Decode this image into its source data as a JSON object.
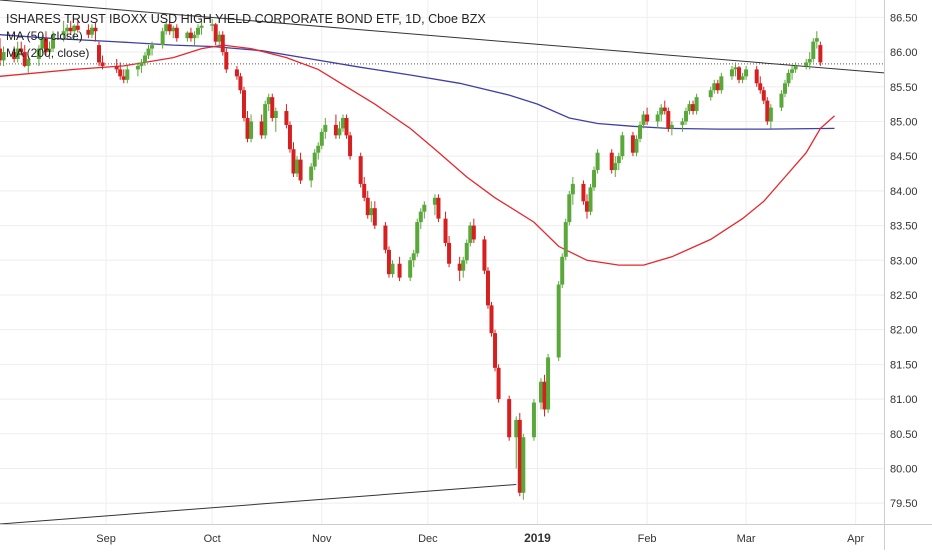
{
  "header": {
    "title": "ISHARES TRUST IBOXX USD HIGH YIELD CORPORATE BOND ETF, 1D, Cboe BZX",
    "ma50_label": "MA (50, close)",
    "ma200_label": "MA (200, close)"
  },
  "colors": {
    "up": "#5aa73a",
    "down": "#d61f1f",
    "ma50": "#e8262b",
    "ma200": "#3f3fa8",
    "trendline": "#333333",
    "grid": "#eeeeee",
    "axis_text": "#333333"
  },
  "chart_data": {
    "type": "candlestick",
    "title": "ISHARES TRUST IBOXX USD HIGH YIELD CORPORATE BOND ETF, 1D, Cboe BZX",
    "xlabel": "",
    "ylabel": "",
    "ylim": [
      79.2,
      86.75
    ],
    "y_ticks": [
      79.5,
      80.0,
      80.5,
      81.0,
      81.5,
      82.0,
      82.5,
      83.0,
      83.5,
      84.0,
      84.5,
      85.0,
      85.5,
      86.0,
      86.5
    ],
    "x_range": [
      "2018-08-02",
      "2019-04-09"
    ],
    "x_ticks": [
      {
        "date": "2018-09-01",
        "label": "Sep"
      },
      {
        "date": "2018-10-01",
        "label": "Oct"
      },
      {
        "date": "2018-11-01",
        "label": "Nov"
      },
      {
        "date": "2018-12-01",
        "label": "Dec"
      },
      {
        "date": "2019-01-01",
        "label": "2019"
      },
      {
        "date": "2019-02-01",
        "label": "Feb"
      },
      {
        "date": "2019-03-01",
        "label": "Mar"
      },
      {
        "date": "2019-04-01",
        "label": "Apr"
      }
    ],
    "grid": true,
    "ohlc": [
      [
        "2018-08-02",
        86.05,
        86.2,
        85.8,
        85.88
      ],
      [
        "2018-08-03",
        85.88,
        86.08,
        85.8,
        86.0
      ],
      [
        "2018-08-06",
        86.0,
        86.08,
        85.85,
        85.9
      ],
      [
        "2018-08-07",
        85.9,
        86.15,
        85.85,
        86.05
      ],
      [
        "2018-08-08",
        86.05,
        86.15,
        85.95,
        86.0
      ],
      [
        "2018-08-09",
        86.0,
        86.1,
        85.78,
        85.8
      ],
      [
        "2018-08-10",
        85.8,
        85.95,
        85.7,
        85.9
      ],
      [
        "2018-08-13",
        85.9,
        86.1,
        85.8,
        86.05
      ],
      [
        "2018-08-14",
        86.05,
        86.25,
        85.98,
        86.2
      ],
      [
        "2018-08-15",
        86.2,
        86.3,
        85.95,
        86.0
      ],
      [
        "2018-08-16",
        86.0,
        86.15,
        85.9,
        86.05
      ],
      [
        "2018-08-17",
        86.05,
        86.3,
        86.0,
        86.25
      ],
      [
        "2018-08-20",
        86.25,
        86.45,
        86.15,
        86.3
      ],
      [
        "2018-08-21",
        86.3,
        86.4,
        86.2,
        86.35
      ],
      [
        "2018-08-22",
        86.35,
        86.45,
        86.25,
        86.3
      ],
      [
        "2018-08-23",
        86.3,
        86.4,
        86.2,
        86.38
      ],
      [
        "2018-08-24",
        86.38,
        86.45,
        86.28,
        86.32
      ],
      [
        "2018-08-27",
        86.32,
        86.4,
        86.2,
        86.25
      ],
      [
        "2018-08-28",
        86.25,
        86.4,
        86.2,
        86.35
      ],
      [
        "2018-08-29",
        86.35,
        86.42,
        86.15,
        86.3
      ],
      [
        "2018-08-30",
        86.1,
        86.15,
        85.8,
        85.85
      ],
      [
        "2018-08-31",
        85.85,
        85.95,
        85.75,
        85.8
      ],
      [
        "2018-09-04",
        85.8,
        85.9,
        85.7,
        85.75
      ],
      [
        "2018-09-05",
        85.75,
        85.85,
        85.6,
        85.65
      ],
      [
        "2018-09-06",
        85.65,
        85.75,
        85.55,
        85.6
      ],
      [
        "2018-09-07",
        85.6,
        85.8,
        85.55,
        85.75
      ],
      [
        "2018-09-10",
        85.75,
        85.85,
        85.65,
        85.8
      ],
      [
        "2018-09-11",
        85.8,
        85.9,
        85.7,
        85.85
      ],
      [
        "2018-09-12",
        85.85,
        86.0,
        85.8,
        85.95
      ],
      [
        "2018-09-13",
        85.95,
        86.1,
        85.9,
        86.05
      ],
      [
        "2018-09-14",
        86.05,
        86.15,
        85.95,
        86.1
      ],
      [
        "2018-09-17",
        86.1,
        86.35,
        86.05,
        86.3
      ],
      [
        "2018-09-18",
        86.3,
        86.45,
        86.25,
        86.4
      ],
      [
        "2018-09-19",
        86.4,
        86.45,
        86.25,
        86.3
      ],
      [
        "2018-09-20",
        86.3,
        86.38,
        86.2,
        86.35
      ],
      [
        "2018-09-21",
        86.35,
        86.4,
        86.15,
        86.2
      ],
      [
        "2018-09-24",
        86.2,
        86.3,
        86.15,
        86.28
      ],
      [
        "2018-09-25",
        86.28,
        86.35,
        86.15,
        86.2
      ],
      [
        "2018-09-26",
        86.2,
        86.3,
        86.1,
        86.25
      ],
      [
        "2018-09-27",
        86.25,
        86.4,
        86.2,
        86.35
      ],
      [
        "2018-09-28",
        86.35,
        86.45,
        86.25,
        86.38
      ],
      [
        "2018-10-01",
        86.38,
        86.48,
        86.3,
        86.4
      ],
      [
        "2018-10-02",
        86.4,
        86.42,
        86.1,
        86.15
      ],
      [
        "2018-10-03",
        86.15,
        86.3,
        86.1,
        86.25
      ],
      [
        "2018-10-04",
        86.25,
        86.3,
        85.95,
        86.0
      ],
      [
        "2018-10-05",
        86.0,
        86.05,
        85.7,
        85.75
      ],
      [
        "2018-10-08",
        85.75,
        85.8,
        85.6,
        85.65
      ],
      [
        "2018-10-09",
        85.65,
        85.7,
        85.4,
        85.45
      ],
      [
        "2018-10-10",
        85.45,
        85.5,
        85.0,
        85.05
      ],
      [
        "2018-10-11",
        85.05,
        85.15,
        84.7,
        84.75
      ],
      [
        "2018-10-12",
        84.75,
        85.1,
        84.7,
        85.0
      ],
      [
        "2018-10-15",
        85.0,
        85.1,
        84.75,
        84.8
      ],
      [
        "2018-10-16",
        84.8,
        85.3,
        84.75,
        85.25
      ],
      [
        "2018-10-17",
        85.25,
        85.4,
        85.15,
        85.35
      ],
      [
        "2018-10-18",
        85.35,
        85.4,
        85.0,
        85.05
      ],
      [
        "2018-10-19",
        85.05,
        85.2,
        84.85,
        85.15
      ],
      [
        "2018-10-22",
        85.15,
        85.25,
        84.9,
        84.95
      ],
      [
        "2018-10-23",
        84.95,
        85.0,
        84.55,
        84.6
      ],
      [
        "2018-10-24",
        84.6,
        84.7,
        84.2,
        84.25
      ],
      [
        "2018-10-25",
        84.25,
        84.5,
        84.2,
        84.45
      ],
      [
        "2018-10-26",
        84.45,
        84.55,
        84.1,
        84.15
      ],
      [
        "2018-10-29",
        84.15,
        84.4,
        84.05,
        84.35
      ],
      [
        "2018-10-30",
        84.35,
        84.6,
        84.3,
        84.55
      ],
      [
        "2018-10-31",
        84.55,
        84.7,
        84.45,
        84.65
      ],
      [
        "2018-11-01",
        84.65,
        84.9,
        84.6,
        84.85
      ],
      [
        "2018-11-02",
        84.85,
        85.05,
        84.75,
        84.95
      ],
      [
        "2018-11-05",
        84.95,
        85.1,
        84.75,
        84.8
      ],
      [
        "2018-11-06",
        84.8,
        85.0,
        84.75,
        84.9
      ],
      [
        "2018-11-07",
        84.9,
        85.1,
        84.85,
        85.05
      ],
      [
        "2018-11-08",
        85.05,
        85.1,
        84.75,
        84.8
      ],
      [
        "2018-11-09",
        84.8,
        84.85,
        84.45,
        84.5
      ],
      [
        "2018-11-12",
        84.5,
        84.55,
        84.05,
        84.1
      ],
      [
        "2018-11-13",
        84.1,
        84.2,
        83.85,
        83.9
      ],
      [
        "2018-11-14",
        83.9,
        84.0,
        83.6,
        83.65
      ],
      [
        "2018-11-15",
        83.65,
        83.85,
        83.55,
        83.75
      ],
      [
        "2018-11-16",
        83.75,
        83.85,
        83.45,
        83.5
      ],
      [
        "2018-11-19",
        83.5,
        83.55,
        83.1,
        83.15
      ],
      [
        "2018-11-20",
        83.15,
        83.2,
        82.75,
        82.8
      ],
      [
        "2018-11-21",
        82.8,
        83.0,
        82.75,
        82.95
      ],
      [
        "2018-11-23",
        82.95,
        83.05,
        82.7,
        82.75
      ],
      [
        "2018-11-26",
        82.75,
        83.05,
        82.7,
        83.0
      ],
      [
        "2018-11-27",
        83.0,
        83.15,
        82.9,
        83.1
      ],
      [
        "2018-11-28",
        83.1,
        83.6,
        83.05,
        83.55
      ],
      [
        "2018-11-29",
        83.55,
        83.75,
        83.45,
        83.7
      ],
      [
        "2018-11-30",
        83.7,
        83.85,
        83.6,
        83.8
      ],
      [
        "2018-12-03",
        83.8,
        83.95,
        83.65,
        83.9
      ],
      [
        "2018-12-04",
        83.9,
        83.95,
        83.55,
        83.6
      ],
      [
        "2018-12-06",
        83.6,
        83.7,
        83.2,
        83.25
      ],
      [
        "2018-12-07",
        83.25,
        83.35,
        82.9,
        82.95
      ],
      [
        "2018-12-10",
        82.95,
        83.05,
        82.7,
        82.85
      ],
      [
        "2018-12-11",
        82.85,
        83.05,
        82.75,
        83.0
      ],
      [
        "2018-12-12",
        83.0,
        83.3,
        82.95,
        83.25
      ],
      [
        "2018-12-13",
        83.25,
        83.55,
        83.2,
        83.5
      ],
      [
        "2018-12-14",
        83.5,
        83.6,
        83.25,
        83.3
      ],
      [
        "2018-12-17",
        83.3,
        83.35,
        82.8,
        82.85
      ],
      [
        "2018-12-18",
        82.85,
        82.9,
        82.3,
        82.35
      ],
      [
        "2018-12-19",
        82.35,
        82.4,
        81.9,
        81.95
      ],
      [
        "2018-12-20",
        81.95,
        82.0,
        81.4,
        81.45
      ],
      [
        "2018-12-21",
        81.45,
        81.5,
        80.95,
        81.0
      ],
      [
        "2018-12-24",
        81.0,
        81.05,
        80.4,
        80.45
      ],
      [
        "2018-12-26",
        80.45,
        80.75,
        80.0,
        80.7
      ],
      [
        "2018-12-27",
        80.7,
        80.8,
        79.6,
        79.65
      ],
      [
        "2018-12-28",
        79.65,
        80.5,
        79.55,
        80.45
      ],
      [
        "2018-12-31",
        80.45,
        81.0,
        80.4,
        80.95
      ],
      [
        "2019-01-02",
        80.95,
        81.3,
        80.85,
        81.25
      ],
      [
        "2019-01-03",
        81.25,
        81.35,
        80.75,
        80.85
      ],
      [
        "2019-01-04",
        80.85,
        81.65,
        80.8,
        81.6
      ],
      [
        "2019-01-07",
        81.6,
        82.7,
        81.55,
        82.65
      ],
      [
        "2019-01-08",
        82.65,
        83.1,
        82.6,
        83.05
      ],
      [
        "2019-01-09",
        83.05,
        83.6,
        83.0,
        83.55
      ],
      [
        "2019-01-10",
        83.55,
        84.0,
        83.5,
        83.95
      ],
      [
        "2019-01-11",
        83.95,
        84.2,
        83.8,
        84.1
      ],
      [
        "2019-01-14",
        84.1,
        84.15,
        83.8,
        83.85
      ],
      [
        "2019-01-15",
        83.85,
        83.95,
        83.6,
        83.7
      ],
      [
        "2019-01-16",
        83.7,
        84.1,
        83.65,
        84.05
      ],
      [
        "2019-01-17",
        84.05,
        84.35,
        84.0,
        84.3
      ],
      [
        "2019-01-18",
        84.3,
        84.6,
        84.25,
        84.55
      ],
      [
        "2019-01-22",
        84.55,
        84.6,
        84.25,
        84.3
      ],
      [
        "2019-01-23",
        84.3,
        84.5,
        84.2,
        84.4
      ],
      [
        "2019-01-24",
        84.4,
        84.55,
        84.3,
        84.5
      ],
      [
        "2019-01-25",
        84.5,
        84.85,
        84.45,
        84.8
      ],
      [
        "2019-01-28",
        84.8,
        84.85,
        84.5,
        84.55
      ],
      [
        "2019-01-29",
        84.55,
        84.8,
        84.5,
        84.75
      ],
      [
        "2019-01-30",
        84.75,
        85.0,
        84.7,
        84.95
      ],
      [
        "2019-01-31",
        84.95,
        85.15,
        84.9,
        85.1
      ],
      [
        "2019-02-01",
        85.1,
        85.2,
        84.95,
        85.0
      ],
      [
        "2019-02-04",
        85.0,
        85.15,
        84.9,
        85.1
      ],
      [
        "2019-02-05",
        85.1,
        85.25,
        85.0,
        85.2
      ],
      [
        "2019-02-06",
        85.2,
        85.3,
        85.1,
        85.15
      ],
      [
        "2019-02-07",
        85.15,
        85.2,
        84.85,
        84.9
      ],
      [
        "2019-02-08",
        84.9,
        85.0,
        84.8,
        84.95
      ],
      [
        "2019-02-11",
        84.95,
        85.05,
        84.85,
        85.0
      ],
      [
        "2019-02-12",
        85.0,
        85.2,
        84.95,
        85.15
      ],
      [
        "2019-02-13",
        85.15,
        85.3,
        85.1,
        85.25
      ],
      [
        "2019-02-14",
        85.25,
        85.3,
        85.1,
        85.15
      ],
      [
        "2019-02-15",
        85.15,
        85.4,
        85.1,
        85.35
      ],
      [
        "2019-02-19",
        85.35,
        85.5,
        85.3,
        85.45
      ],
      [
        "2019-02-20",
        85.45,
        85.6,
        85.4,
        85.55
      ],
      [
        "2019-02-21",
        85.55,
        85.6,
        85.4,
        85.45
      ],
      [
        "2019-02-22",
        85.45,
        85.7,
        85.4,
        85.65
      ],
      [
        "2019-02-25",
        85.65,
        85.8,
        85.6,
        85.75
      ],
      [
        "2019-02-26",
        85.75,
        85.85,
        85.65,
        85.78
      ],
      [
        "2019-02-27",
        85.78,
        85.8,
        85.55,
        85.6
      ],
      [
        "2019-02-28",
        85.6,
        85.7,
        85.55,
        85.65
      ],
      [
        "2019-03-01",
        85.65,
        85.8,
        85.6,
        85.75
      ],
      [
        "2019-03-04",
        85.75,
        85.8,
        85.5,
        85.55
      ],
      [
        "2019-03-05",
        85.55,
        85.65,
        85.4,
        85.45
      ],
      [
        "2019-03-06",
        85.45,
        85.5,
        85.25,
        85.3
      ],
      [
        "2019-03-07",
        85.3,
        85.35,
        84.95,
        85.0
      ],
      [
        "2019-03-08",
        85.0,
        85.25,
        84.9,
        85.2
      ],
      [
        "2019-03-11",
        85.2,
        85.45,
        85.15,
        85.4
      ],
      [
        "2019-03-12",
        85.4,
        85.6,
        85.35,
        85.55
      ],
      [
        "2019-03-13",
        85.55,
        85.75,
        85.5,
        85.7
      ],
      [
        "2019-03-14",
        85.7,
        85.8,
        85.6,
        85.75
      ],
      [
        "2019-03-15",
        85.75,
        85.85,
        85.7,
        85.8
      ],
      [
        "2019-03-18",
        85.8,
        85.9,
        85.75,
        85.85
      ],
      [
        "2019-03-19",
        85.85,
        86.0,
        85.75,
        85.9
      ],
      [
        "2019-03-20",
        85.9,
        86.2,
        85.85,
        86.15
      ],
      [
        "2019-03-21",
        86.15,
        86.3,
        86.05,
        86.2
      ],
      [
        "2019-03-22",
        86.1,
        86.15,
        85.8,
        85.85
      ]
    ],
    "ma50": [
      [
        "2018-08-02",
        85.65
      ],
      [
        "2018-08-23",
        85.75
      ],
      [
        "2018-09-06",
        85.8
      ],
      [
        "2018-09-20",
        85.92
      ],
      [
        "2018-09-28",
        86.05
      ],
      [
        "2018-10-04",
        86.1
      ],
      [
        "2018-10-12",
        86.05
      ],
      [
        "2018-10-22",
        85.92
      ],
      [
        "2018-10-31",
        85.75
      ],
      [
        "2018-11-08",
        85.5
      ],
      [
        "2018-11-16",
        85.25
      ],
      [
        "2018-11-26",
        84.9
      ],
      [
        "2018-12-03",
        84.6
      ],
      [
        "2018-12-12",
        84.2
      ],
      [
        "2018-12-20",
        83.9
      ],
      [
        "2018-12-31",
        83.55
      ],
      [
        "2019-01-07",
        83.2
      ],
      [
        "2019-01-15",
        83.0
      ],
      [
        "2019-01-24",
        82.93
      ],
      [
        "2019-01-31",
        82.93
      ],
      [
        "2019-02-08",
        83.05
      ],
      [
        "2019-02-19",
        83.3
      ],
      [
        "2019-02-28",
        83.6
      ],
      [
        "2019-03-06",
        83.85
      ],
      [
        "2019-03-12",
        84.2
      ],
      [
        "2019-03-18",
        84.55
      ],
      [
        "2019-03-22",
        84.9
      ],
      [
        "2019-03-26",
        85.08
      ]
    ],
    "ma200": [
      [
        "2018-08-02",
        86.25
      ],
      [
        "2018-08-16",
        86.2
      ],
      [
        "2018-09-03",
        86.15
      ],
      [
        "2018-09-20",
        86.1
      ],
      [
        "2018-10-01",
        86.08
      ],
      [
        "2018-10-15",
        86.02
      ],
      [
        "2018-10-29",
        85.9
      ],
      [
        "2018-11-12",
        85.78
      ],
      [
        "2018-11-26",
        85.67
      ],
      [
        "2018-12-10",
        85.55
      ],
      [
        "2018-12-24",
        85.38
      ],
      [
        "2019-01-01",
        85.25
      ],
      [
        "2019-01-10",
        85.05
      ],
      [
        "2019-01-18",
        84.97
      ],
      [
        "2019-01-28",
        84.93
      ],
      [
        "2019-02-07",
        84.9
      ],
      [
        "2019-02-21",
        84.89
      ],
      [
        "2019-03-07",
        84.89
      ],
      [
        "2019-03-26",
        84.9
      ]
    ],
    "trendlines": [
      {
        "from": [
          "2018-08-02",
          79.2
        ],
        "to": [
          "2018-12-26",
          79.77
        ]
      },
      {
        "from": [
          "2018-08-02",
          86.75
        ],
        "to": [
          "2019-04-09",
          85.7
        ]
      }
    ],
    "reference_line": {
      "value": 85.83,
      "style": "dotted"
    }
  }
}
